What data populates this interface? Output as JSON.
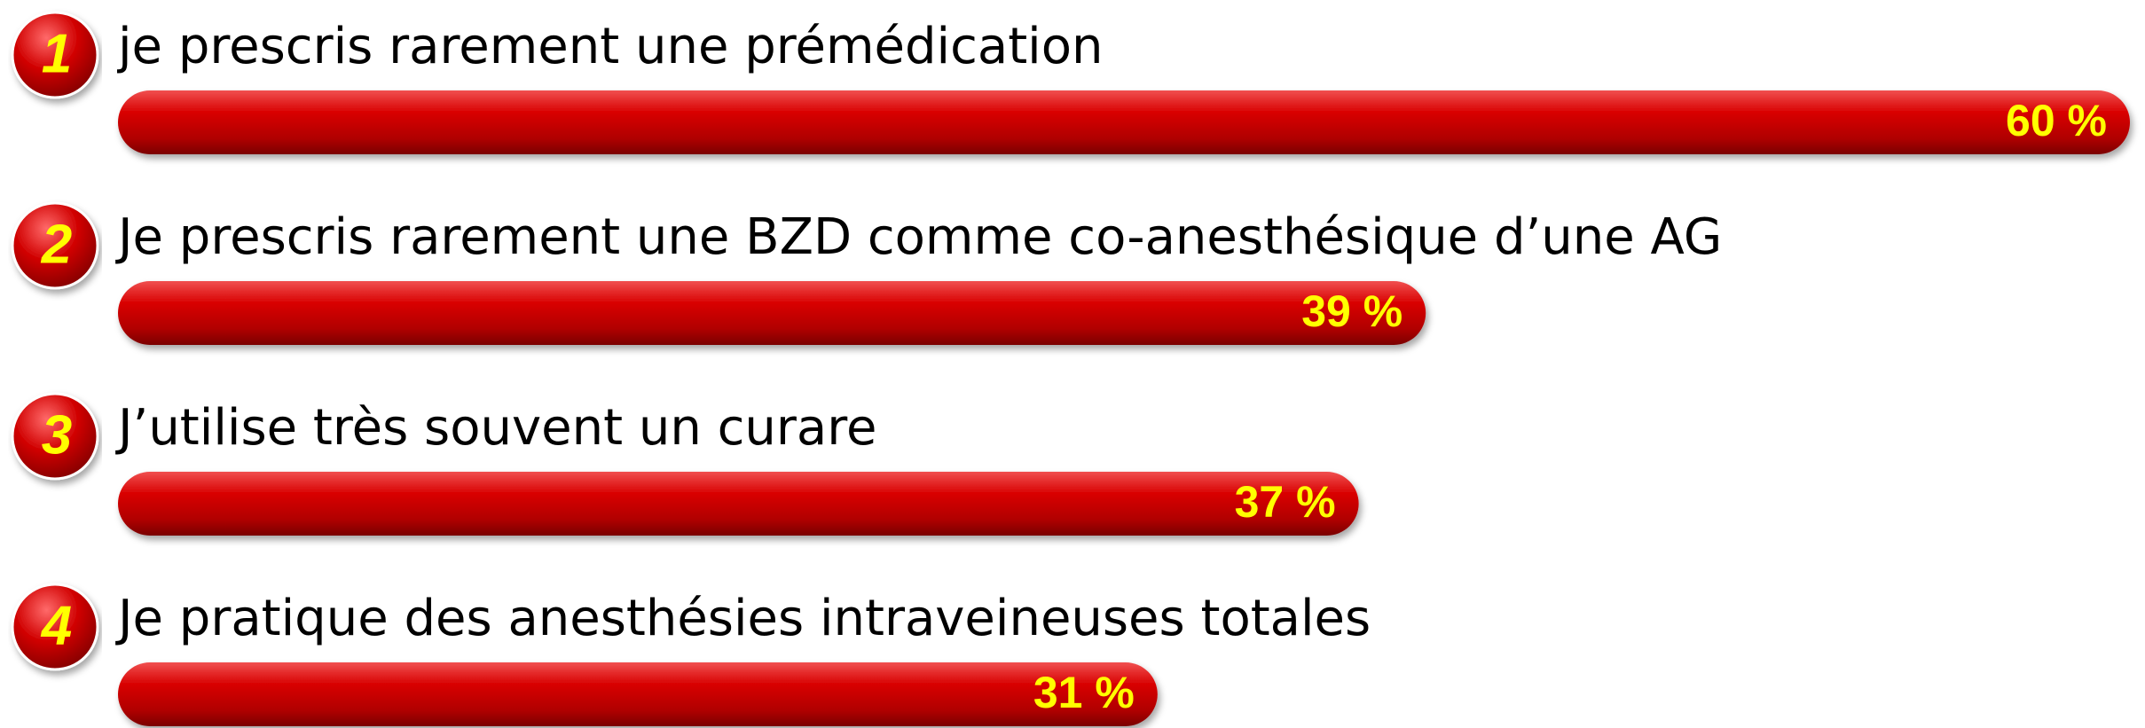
{
  "chart_data": {
    "type": "bar",
    "orientation": "horizontal",
    "badges": [
      "1",
      "2",
      "3",
      "4"
    ],
    "categories": [
      "je prescris rarement une prémédication",
      "Je prescris rarement une BZD comme co-anesthésique d’une AG",
      "J’utilise très souvent un curare",
      "Je pratique des anesthésies intraveineuses totales"
    ],
    "values": [
      60,
      39,
      37,
      31
    ],
    "value_labels": [
      "60 %",
      "39 %",
      "37 %",
      "31 %"
    ],
    "color": "#c00000",
    "label_color": "#ffff00"
  }
}
